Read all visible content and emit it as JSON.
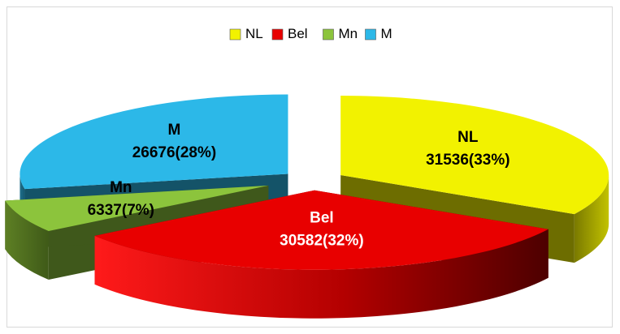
{
  "chart_data": {
    "type": "pie",
    "title": "",
    "legend_position": "top",
    "categories": [
      "NL",
      "Bel",
      "Mn",
      "M"
    ],
    "values": [
      31536,
      30582,
      6337,
      26676
    ],
    "percent_labels": [
      "33%",
      "32%",
      "7%",
      "28%"
    ],
    "data_labels": [
      "31536(33%)",
      "30582(32%)",
      "6337(7%)",
      "26676(28%)"
    ],
    "colors": [
      "#f2f200",
      "#e80000",
      "#8cc43c",
      "#2cb8e8"
    ],
    "exploded": true,
    "style": "3d"
  }
}
